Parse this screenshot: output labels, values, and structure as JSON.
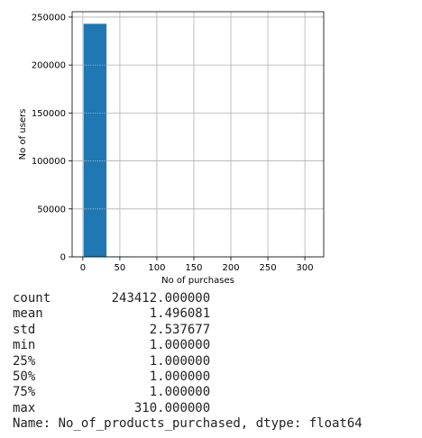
{
  "chart_data": {
    "type": "bar",
    "xlabel": "No of purchases",
    "ylabel": "No of users",
    "xlim": [
      -14.5,
      325.5
    ],
    "ylim": [
      0,
      255580
    ],
    "xticks": [
      0,
      50,
      100,
      150,
      200,
      250,
      300
    ],
    "yticks": [
      0,
      50000,
      100000,
      150000,
      200000,
      250000
    ],
    "grid": true,
    "bar_color": "#1f77b4",
    "bins": [
      {
        "start": 1.0,
        "end": 31.9,
        "count": 243000
      },
      {
        "start": 31.9,
        "end": 62.8,
        "count": 350
      },
      {
        "start": 62.8,
        "end": 93.7,
        "count": 40
      },
      {
        "start": 93.7,
        "end": 124.6,
        "count": 10
      },
      {
        "start": 124.6,
        "end": 155.5,
        "count": 5
      },
      {
        "start": 155.5,
        "end": 186.4,
        "count": 3
      },
      {
        "start": 186.4,
        "end": 217.3,
        "count": 2
      },
      {
        "start": 217.3,
        "end": 248.2,
        "count": 1
      },
      {
        "start": 248.2,
        "end": 279.1,
        "count": 0
      },
      {
        "start": 279.1,
        "end": 310.0,
        "count": 1
      }
    ]
  },
  "stats": {
    "rows": [
      {
        "label": "count",
        "value": "243412.000000"
      },
      {
        "label": "mean",
        "value": "1.496081"
      },
      {
        "label": "std",
        "value": "2.537677"
      },
      {
        "label": "min",
        "value": "1.000000"
      },
      {
        "label": "25%",
        "value": "1.000000"
      },
      {
        "label": "50%",
        "value": "1.000000"
      },
      {
        "label": "75%",
        "value": "1.000000"
      },
      {
        "label": "max",
        "value": "310.000000"
      }
    ],
    "footer": "Name: No_of_products_purchased, dtype: float64"
  }
}
